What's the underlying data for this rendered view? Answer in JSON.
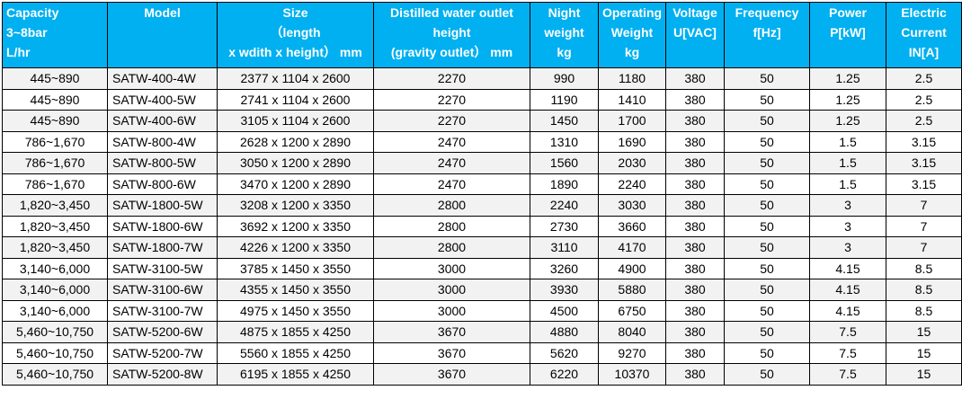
{
  "table": {
    "headers": [
      {
        "lines": [
          "Capacity",
          "3~8bar",
          "L/hr"
        ]
      },
      {
        "lines": [
          "Model"
        ]
      },
      {
        "lines": [
          "Size",
          "（length",
          "x wdith x height） mm"
        ]
      },
      {
        "lines": [
          "Distilled water outlet",
          "height",
          "(gravity outlet） mm"
        ]
      },
      {
        "lines": [
          "Night",
          "weight",
          "kg"
        ]
      },
      {
        "lines": [
          "Operating",
          "Weight",
          "kg"
        ]
      },
      {
        "lines": [
          "Voltage",
          "U[VAC]"
        ]
      },
      {
        "lines": [
          "Frequency",
          "f[Hz]"
        ]
      },
      {
        "lines": [
          "Power",
          "P[kW]"
        ]
      },
      {
        "lines": [
          "Electric",
          "Current",
          "IN[A]"
        ]
      }
    ],
    "rows": [
      [
        "445~890",
        "SATW-400-4W",
        "2377 x 1104 x 2600",
        "2270",
        "990",
        "1180",
        "380",
        "50",
        "1.25",
        "2.5"
      ],
      [
        "445~890",
        "SATW-400-5W",
        "2741 x 1104 x 2600",
        "2270",
        "1190",
        "1410",
        "380",
        "50",
        "1.25",
        "2.5"
      ],
      [
        "445~890",
        "SATW-400-6W",
        "3105 x 1104 x 2600",
        "2270",
        "1450",
        "1700",
        "380",
        "50",
        "1.25",
        "2.5"
      ],
      [
        "786~1,670",
        "SATW-800-4W",
        "2628 x 1200 x 2890",
        "2470",
        "1310",
        "1690",
        "380",
        "50",
        "1.5",
        "3.15"
      ],
      [
        "786~1,670",
        "SATW-800-5W",
        "3050 x 1200 x 2890",
        "2470",
        "1560",
        "2030",
        "380",
        "50",
        "1.5",
        "3.15"
      ],
      [
        "786~1,670",
        "SATW-800-6W",
        "3470 x 1200 x 2890",
        "2470",
        "1890",
        "2240",
        "380",
        "50",
        "1.5",
        "3.15"
      ],
      [
        "1,820~3,450",
        "SATW-1800-5W",
        "3208 x 1200 x 3350",
        "2800",
        "2240",
        "3030",
        "380",
        "50",
        "3",
        "7"
      ],
      [
        "1,820~3,450",
        "SATW-1800-6W",
        "3692 x 1200 x 3350",
        "2800",
        "2730",
        "3660",
        "380",
        "50",
        "3",
        "7"
      ],
      [
        "1,820~3,450",
        "SATW-1800-7W",
        "4226 x 1200 x 3350",
        "2800",
        "3110",
        "4170",
        "380",
        "50",
        "3",
        "7"
      ],
      [
        "3,140~6,000",
        "SATW-3100-5W",
        "3785 x 1450 x 3550",
        "3000",
        "3260",
        "4900",
        "380",
        "50",
        "4.15",
        "8.5"
      ],
      [
        "3,140~6,000",
        "SATW-3100-6W",
        "4355 x 1450 x 3550",
        "3000",
        "3930",
        "5880",
        "380",
        "50",
        "4.15",
        "8.5"
      ],
      [
        "3,140~6,000",
        "SATW-3100-7W",
        "4975 x 1450 x 3550",
        "3000",
        "4500",
        "6750",
        "380",
        "50",
        "4.15",
        "8.5"
      ],
      [
        "5,460~10,750",
        "SATW-5200-6W",
        "4875 x 1855 x 4250",
        "3670",
        "4880",
        "8040",
        "380",
        "50",
        "7.5",
        "15"
      ],
      [
        "5,460~10,750",
        "SATW-5200-7W",
        "5560 x 1855 x 4250",
        "3670",
        "5620",
        "9270",
        "380",
        "50",
        "7.5",
        "15"
      ],
      [
        "5,460~10,750",
        "SATW-5200-8W",
        "6195 x 1855 x 4250",
        "3670",
        "6220",
        "10370",
        "380",
        "50",
        "7.5",
        "15"
      ]
    ]
  },
  "colors": {
    "header_bg": "#00b0f0",
    "header_text": "#ffffff",
    "row_shade": "#f2f2f2",
    "border": "#000000"
  }
}
